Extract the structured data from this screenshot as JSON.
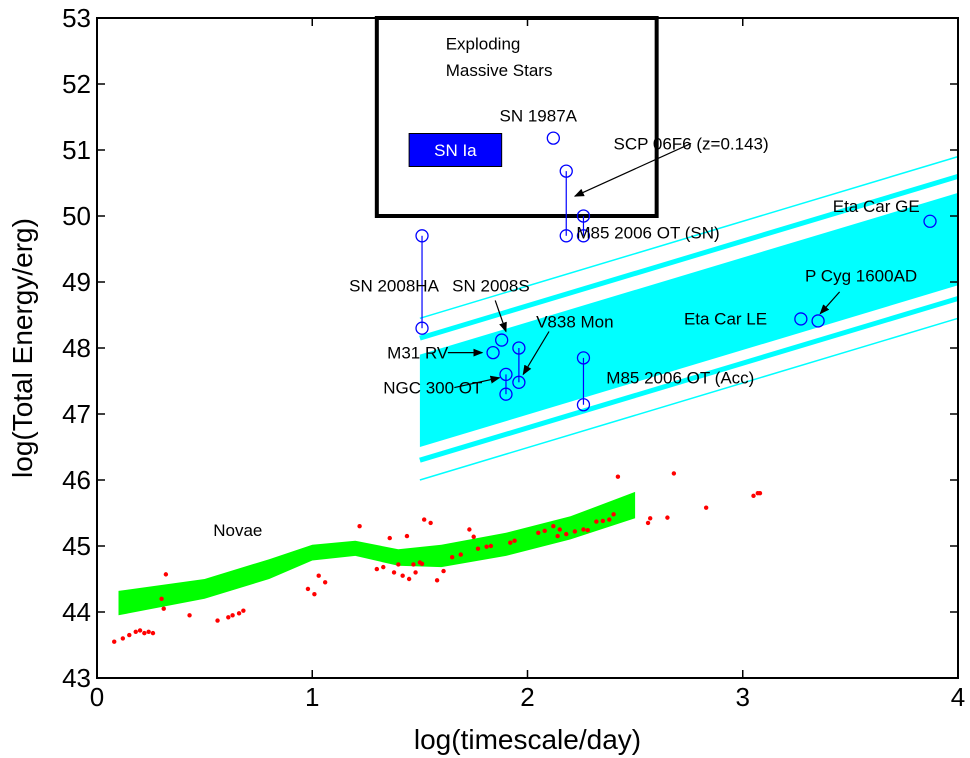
{
  "chart_data": {
    "type": "scatter",
    "title": "",
    "xlabel": "log(timescale/day)",
    "ylabel": "log(Total Energy/erg)",
    "xlim": [
      0,
      4
    ],
    "ylim": [
      43,
      53
    ],
    "xticks": [
      0,
      1,
      2,
      3,
      4
    ],
    "yticks": [
      43,
      44,
      45,
      46,
      47,
      48,
      49,
      50,
      51,
      52,
      53
    ],
    "grid": false,
    "legend": "none",
    "colors": {
      "novae_band": "#00ff00",
      "novae_points": "#ff0000",
      "lbv_band": "#00ffff",
      "transients": "#0000ff",
      "sn_ia_box": "#0000ff",
      "axes": "#000000"
    },
    "regions": {
      "exploding_massive_stars": {
        "label_line1": "Exploding",
        "label_line2": "Massive Stars",
        "x": [
          1.3,
          2.6
        ],
        "y": [
          50.0,
          53.0
        ]
      },
      "sn_ia": {
        "label": "SN Ia",
        "x": [
          1.45,
          1.88
        ],
        "y": [
          50.75,
          51.25
        ]
      },
      "novae": {
        "label": "Novae",
        "band_top": [
          [
            0.1,
            44.32
          ],
          [
            0.5,
            44.5
          ],
          [
            0.8,
            44.8
          ],
          [
            1.0,
            45.02
          ],
          [
            1.2,
            45.08
          ],
          [
            1.4,
            44.95
          ],
          [
            1.6,
            45.02
          ],
          [
            1.9,
            45.2
          ],
          [
            2.2,
            45.45
          ],
          [
            2.5,
            45.82
          ]
        ],
        "band_bottom": [
          [
            2.5,
            45.42
          ],
          [
            2.2,
            45.1
          ],
          [
            1.9,
            44.85
          ],
          [
            1.6,
            44.68
          ],
          [
            1.4,
            44.7
          ],
          [
            1.2,
            44.85
          ],
          [
            1.0,
            44.78
          ],
          [
            0.8,
            44.5
          ],
          [
            0.5,
            44.2
          ],
          [
            0.1,
            43.95
          ]
        ]
      },
      "lbv_band": {
        "main_band": [
          [
            1.5,
            47.9
          ],
          [
            4.0,
            50.35
          ],
          [
            4.0,
            48.95
          ],
          [
            1.5,
            46.5
          ]
        ],
        "outer_lines": [
          {
            "x": [
              1.5,
              4.0
            ],
            "y": [
              48.45,
              50.9
            ]
          },
          {
            "x": [
              1.5,
              4.0
            ],
            "y": [
              48.15,
              50.6
            ]
          },
          {
            "x": [
              1.5,
              4.0
            ],
            "y": [
              46.3,
              48.75
            ]
          },
          {
            "x": [
              1.5,
              4.0
            ],
            "y": [
              46.0,
              48.45
            ]
          }
        ]
      }
    },
    "novae_points": {
      "x": [
        0.08,
        0.12,
        0.15,
        0.18,
        0.2,
        0.22,
        0.24,
        0.26,
        0.3,
        0.31,
        0.32,
        0.43,
        0.56,
        0.61,
        0.63,
        0.66,
        0.68,
        0.98,
        1.01,
        1.03,
        1.06,
        1.22,
        1.3,
        1.33,
        1.36,
        1.38,
        1.4,
        1.42,
        1.44,
        1.45,
        1.47,
        1.48,
        1.5,
        1.51,
        1.52,
        1.55,
        1.58,
        1.61,
        1.65,
        1.69,
        1.73,
        1.75,
        1.77,
        1.81,
        1.83,
        1.92,
        1.94,
        2.05,
        2.08,
        2.12,
        2.14,
        2.15,
        2.18,
        2.22,
        2.26,
        2.28,
        2.32,
        2.35,
        2.38,
        2.4,
        2.42,
        2.56,
        2.57,
        2.65,
        2.68,
        2.83,
        3.05,
        3.07,
        3.08
      ],
      "y": [
        43.55,
        43.6,
        43.65,
        43.7,
        43.72,
        43.68,
        43.7,
        43.68,
        44.2,
        44.05,
        44.57,
        43.95,
        43.87,
        43.92,
        43.95,
        43.98,
        44.02,
        44.35,
        44.27,
        44.55,
        44.45,
        45.3,
        44.65,
        44.68,
        45.12,
        44.6,
        44.72,
        44.55,
        45.15,
        44.5,
        44.72,
        44.6,
        44.75,
        44.73,
        45.4,
        45.35,
        44.48,
        44.62,
        44.83,
        44.87,
        45.25,
        45.14,
        44.96,
        44.99,
        45.0,
        45.05,
        45.08,
        45.2,
        45.23,
        45.3,
        45.15,
        45.25,
        45.18,
        45.22,
        45.25,
        45.24,
        45.37,
        45.38,
        45.4,
        45.48,
        46.05,
        45.35,
        45.42,
        45.43,
        46.1,
        45.58,
        45.76,
        45.8,
        45.8
      ]
    },
    "transients": [
      {
        "name": "SN 1987A",
        "x": 2.12,
        "y": [
          51.18
        ]
      },
      {
        "name": "SCP 06F6 (z=0.143)",
        "x": 2.18,
        "y": [
          49.7,
          50.68
        ]
      },
      {
        "name": "M85 2006 OT (SN)",
        "x": 2.26,
        "y": [
          49.7,
          50.0
        ]
      },
      {
        "name": "SN 2008HA",
        "x": 1.51,
        "y": [
          48.3,
          49.7
        ]
      },
      {
        "name": "SN 2008S",
        "x": 1.88,
        "y": [
          48.12
        ]
      },
      {
        "name": "M31 RV",
        "x": 1.84,
        "y": [
          47.93
        ]
      },
      {
        "name": "V838 Mon",
        "x": 1.96,
        "y": [
          47.48,
          48.0
        ]
      },
      {
        "name": "NGC 300 OT",
        "x": 1.9,
        "y": [
          47.3,
          47.6
        ]
      },
      {
        "name": "M85 2006 OT (Acc)",
        "x": 2.26,
        "y": [
          47.14,
          47.85
        ]
      },
      {
        "name": "Eta Car LE",
        "x": 3.27,
        "y": [
          48.44
        ]
      },
      {
        "name": "P Cyg 1600AD",
        "x": 3.35,
        "y": [
          48.41
        ]
      },
      {
        "name": "Eta Car GE",
        "x": 3.87,
        "y": [
          49.92
        ]
      }
    ],
    "annotations": [
      {
        "text": "SN 1987A",
        "pos": [
          2.05,
          51.52
        ]
      },
      {
        "text": "SCP 06F6 (z=0.143)",
        "pos": [
          2.76,
          51.1
        ],
        "arrow_from": [
          2.76,
          51.1
        ],
        "arrow_to": [
          2.22,
          50.3
        ]
      },
      {
        "text": "M85 2006 OT (SN)",
        "pos": [
          2.56,
          49.75
        ]
      },
      {
        "text": "SN 2008HA",
        "pos": [
          1.38,
          48.95
        ]
      },
      {
        "text": "SN 2008S",
        "pos": [
          1.83,
          48.95
        ],
        "arrow_from": [
          1.85,
          48.72
        ],
        "arrow_to": [
          1.9,
          48.25
        ]
      },
      {
        "text": "M31 RV",
        "pos": [
          1.49,
          47.93
        ],
        "arrow_from": [
          1.63,
          47.93
        ],
        "arrow_to": [
          1.79,
          47.93
        ]
      },
      {
        "text": "V838 Mon",
        "pos": [
          2.22,
          48.4
        ],
        "arrow_from": [
          2.1,
          48.25
        ],
        "arrow_to": [
          1.98,
          47.6
        ]
      },
      {
        "text": "NGC 300 OT",
        "pos": [
          1.56,
          47.4
        ],
        "arrow_from": [
          1.66,
          47.4
        ],
        "arrow_to": [
          1.87,
          47.55
        ]
      },
      {
        "text": "M85 2006 OT (Acc)",
        "pos": [
          2.71,
          47.55
        ]
      },
      {
        "text": "Eta Car LE",
        "pos": [
          2.92,
          48.45
        ]
      },
      {
        "text": "P Cyg 1600AD",
        "pos": [
          3.55,
          49.1
        ],
        "arrow_from": [
          3.45,
          48.85
        ],
        "arrow_to": [
          3.36,
          48.52
        ]
      },
      {
        "text": "Eta Car GE",
        "pos": [
          3.62,
          50.15
        ]
      }
    ]
  }
}
